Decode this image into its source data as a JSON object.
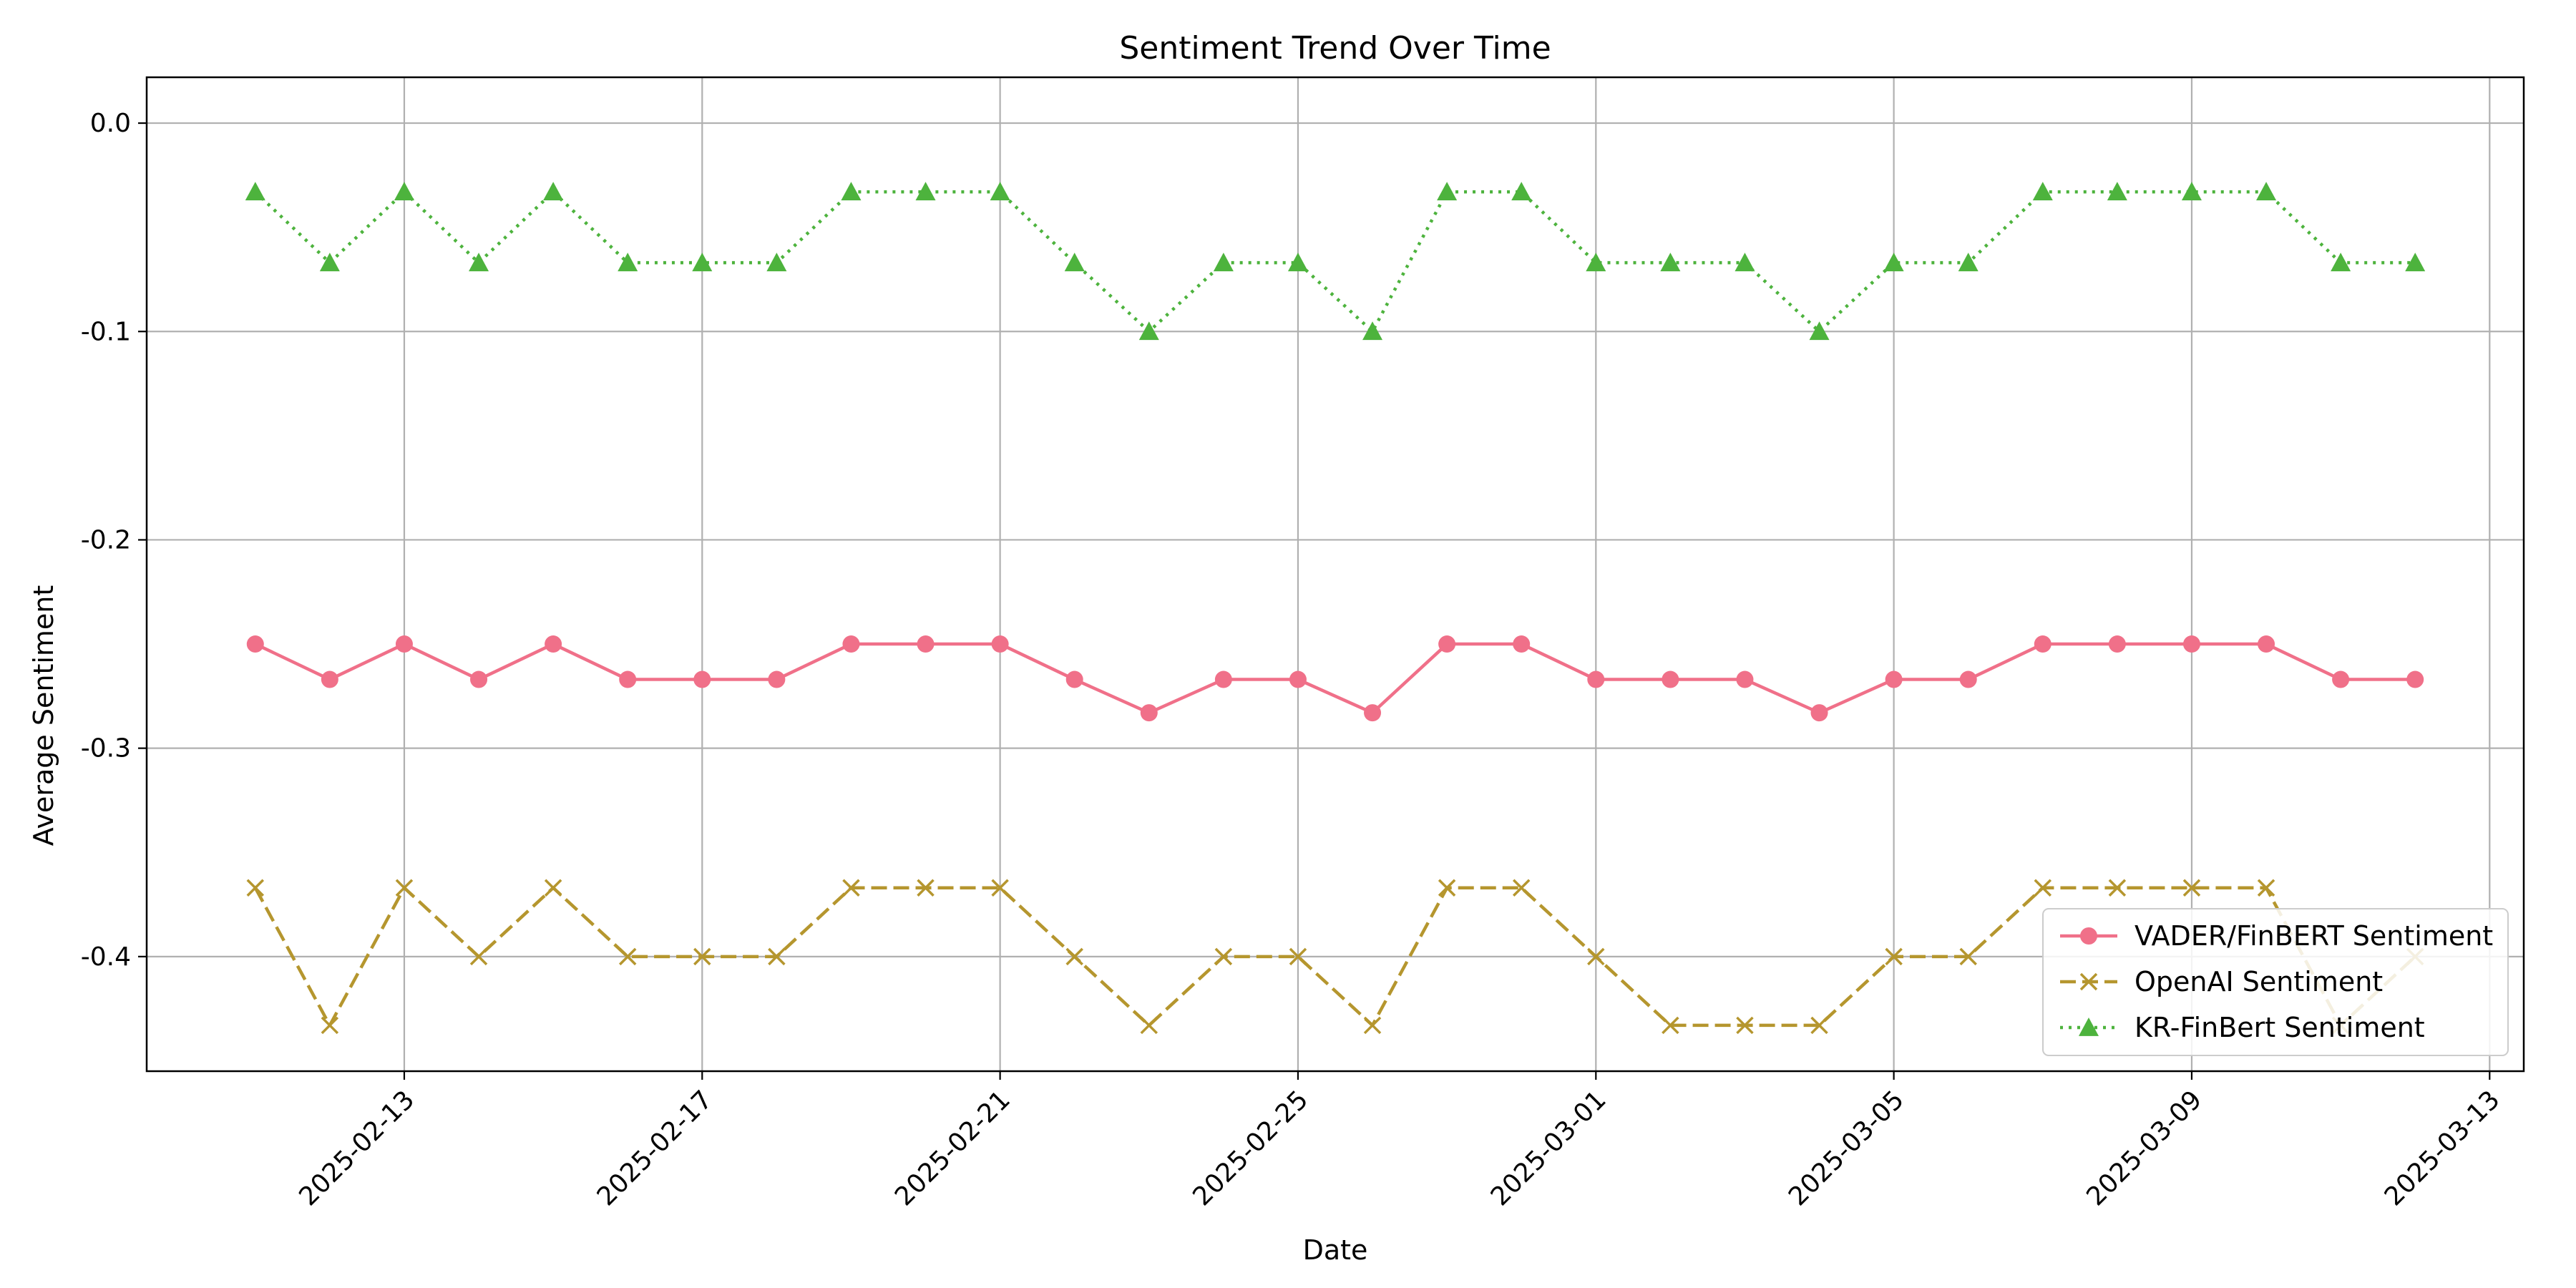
{
  "chart_data": {
    "type": "line",
    "title": "Sentiment Trend Over Time",
    "xlabel": "Date",
    "ylabel": "Average Sentiment",
    "x": [
      "2025-02-11",
      "2025-02-12",
      "2025-02-13",
      "2025-02-14",
      "2025-02-15",
      "2025-02-16",
      "2025-02-17",
      "2025-02-18",
      "2025-02-19",
      "2025-02-20",
      "2025-02-21",
      "2025-02-22",
      "2025-02-23",
      "2025-02-24",
      "2025-02-25",
      "2025-02-26",
      "2025-02-27",
      "2025-02-28",
      "2025-03-01",
      "2025-03-02",
      "2025-03-03",
      "2025-03-04",
      "2025-03-05",
      "2025-03-06",
      "2025-03-07",
      "2025-03-08",
      "2025-03-09",
      "2025-03-10",
      "2025-03-11",
      "2025-03-12"
    ],
    "xlim": [
      "2025-02-09T13:00",
      "2025-03-13T11:00"
    ],
    "xticks": [
      "2025-02-13",
      "2025-02-17",
      "2025-02-21",
      "2025-02-25",
      "2025-03-01",
      "2025-03-05",
      "2025-03-09",
      "2025-03-13"
    ],
    "ylim": [
      -0.455,
      0.022
    ],
    "yticks": [
      0.0,
      -0.1,
      -0.2,
      -0.3,
      -0.4
    ],
    "ytick_labels": [
      "0.0",
      "-0.1",
      "-0.2",
      "-0.3",
      "-0.4"
    ],
    "grid": true,
    "legend_position": "lower-right",
    "series": [
      {
        "name": "VADER/FinBERT Sentiment",
        "color": "#f07089",
        "line_style": "solid",
        "marker": "circle",
        "values": [
          -0.25,
          -0.267,
          -0.25,
          -0.267,
          -0.25,
          -0.267,
          -0.267,
          -0.267,
          -0.25,
          -0.25,
          -0.25,
          -0.267,
          -0.283,
          -0.267,
          -0.267,
          -0.283,
          -0.25,
          -0.25,
          -0.267,
          -0.267,
          -0.267,
          -0.283,
          -0.267,
          -0.267,
          -0.25,
          -0.25,
          -0.25,
          -0.25,
          -0.267,
          -0.267
        ]
      },
      {
        "name": "OpenAI Sentiment",
        "color": "#b5962e",
        "line_style": "dashed",
        "marker": "x",
        "values": [
          -0.367,
          -0.433,
          -0.367,
          -0.4,
          -0.367,
          -0.4,
          -0.4,
          -0.4,
          -0.367,
          -0.367,
          -0.367,
          -0.4,
          -0.433,
          -0.4,
          -0.4,
          -0.433,
          -0.367,
          -0.367,
          -0.4,
          -0.433,
          -0.433,
          -0.433,
          -0.4,
          -0.4,
          -0.367,
          -0.367,
          -0.367,
          -0.367,
          -0.433,
          -0.4
        ]
      },
      {
        "name": "KR-FinBert Sentiment",
        "color": "#4db33d",
        "line_style": "dotted",
        "marker": "triangle",
        "values": [
          -0.033,
          -0.067,
          -0.033,
          -0.067,
          -0.033,
          -0.067,
          -0.067,
          -0.067,
          -0.033,
          -0.033,
          -0.033,
          -0.067,
          -0.1,
          -0.067,
          -0.067,
          -0.1,
          -0.033,
          -0.033,
          -0.067,
          -0.067,
          -0.067,
          -0.1,
          -0.067,
          -0.067,
          -0.033,
          -0.033,
          -0.033,
          -0.033,
          -0.067,
          -0.067
        ]
      }
    ]
  }
}
